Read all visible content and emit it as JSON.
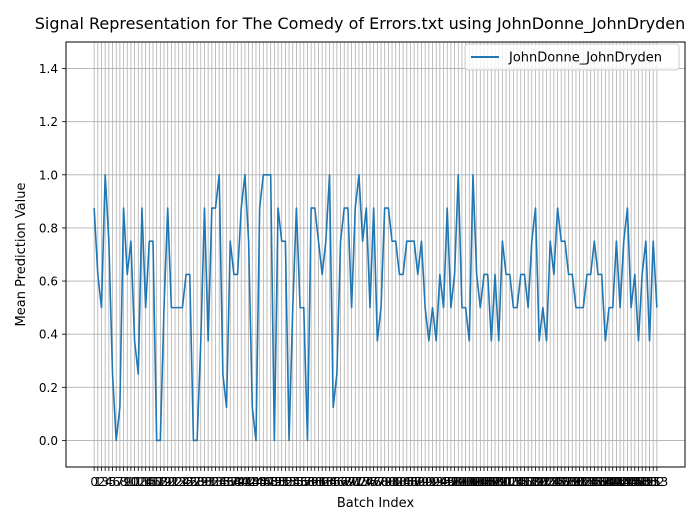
{
  "chart_data": {
    "type": "line",
    "title": "Signal Representation for The Comedy of Errors.txt using JohnDonne_JohnDryden",
    "xlabel": "Batch Index",
    "ylabel": "Mean Prediction Value",
    "ylim": [
      -0.1,
      1.5
    ],
    "yticks": [
      "0.0",
      "0.2",
      "0.4",
      "0.6",
      "0.8",
      "1.0",
      "1.2",
      "1.4"
    ],
    "grid": true,
    "legend_position": "upper right",
    "series": [
      {
        "name": "JohnDonne_JohnDryden",
        "color": "#1f77b4",
        "x": [
          0,
          1,
          2,
          3,
          4,
          5,
          6,
          7,
          8,
          9,
          10,
          11,
          12,
          13,
          14,
          15,
          16,
          17,
          18,
          19,
          20,
          21,
          22,
          23,
          24,
          25,
          26,
          27,
          28,
          29,
          30,
          31,
          32,
          33,
          34,
          35,
          36,
          37,
          38,
          39,
          40,
          41,
          42,
          43,
          44,
          45,
          46,
          47,
          48,
          49,
          50,
          51,
          52,
          53,
          54,
          55,
          56,
          57,
          58,
          59,
          60,
          61,
          62,
          63,
          64,
          65,
          66,
          67,
          68,
          69,
          70,
          71,
          72,
          73,
          74,
          75,
          76,
          77,
          78,
          79,
          80,
          81,
          82,
          83,
          84,
          85,
          86,
          87,
          88,
          89,
          90,
          91,
          92,
          93,
          94,
          95,
          96,
          97,
          98,
          99,
          100,
          101,
          102,
          103,
          104,
          105,
          106,
          107,
          108,
          109,
          110,
          111,
          112,
          113,
          114,
          115,
          116,
          117,
          118,
          119,
          120,
          121,
          122,
          123,
          124,
          125,
          126,
          127,
          128,
          129,
          130,
          131,
          132,
          133,
          134,
          135,
          136,
          137,
          138,
          139,
          140,
          141,
          142,
          143,
          144,
          145,
          146,
          147,
          148,
          149,
          150,
          151,
          152,
          153
        ],
        "values": [
          0.875,
          0.625,
          0.5,
          1.0,
          0.75,
          0.25,
          0.0,
          0.125,
          0.875,
          0.625,
          0.75,
          0.375,
          0.25,
          0.875,
          0.5,
          0.75,
          0.75,
          0.0,
          0.0,
          0.5,
          0.875,
          0.5,
          0.5,
          0.5,
          0.5,
          0.625,
          0.625,
          0.0,
          0.0,
          0.375,
          0.875,
          0.375,
          0.875,
          0.875,
          1.0,
          0.25,
          0.125,
          0.75,
          0.625,
          0.625,
          0.875,
          1.0,
          0.75,
          0.125,
          0.0,
          0.875,
          1.0,
          1.0,
          1.0,
          0.0,
          0.875,
          0.75,
          0.75,
          0.0,
          0.5,
          0.875,
          0.5,
          0.5,
          0.0,
          0.875,
          0.875,
          0.75,
          0.625,
          0.75,
          1.0,
          0.125,
          0.25,
          0.75,
          0.875,
          0.875,
          0.5,
          0.875,
          1.0,
          0.75,
          0.875,
          0.5,
          0.875,
          0.375,
          0.5,
          0.875,
          0.875,
          0.75,
          0.75,
          0.625,
          0.625,
          0.75,
          0.75,
          0.75,
          0.625,
          0.75,
          0.5,
          0.375,
          0.5,
          0.375,
          0.625,
          0.5,
          0.875,
          0.5,
          0.625,
          1.0,
          0.5,
          0.5,
          0.375,
          1.0,
          0.625,
          0.5,
          0.625,
          0.625,
          0.375,
          0.625,
          0.375,
          0.75,
          0.625,
          0.625,
          0.5,
          0.5,
          0.625,
          0.625,
          0.5,
          0.75,
          0.875,
          0.375,
          0.5,
          0.375,
          0.75,
          0.625,
          0.875,
          0.75,
          0.75,
          0.625,
          0.625,
          0.5,
          0.5,
          0.5,
          0.625,
          0.625,
          0.75,
          0.625,
          0.625,
          0.375,
          0.5,
          0.5,
          0.75,
          0.5,
          0.75,
          0.875,
          0.5,
          0.625,
          0.375,
          0.625,
          0.75,
          0.375,
          0.75,
          0.5
        ]
      }
    ]
  }
}
